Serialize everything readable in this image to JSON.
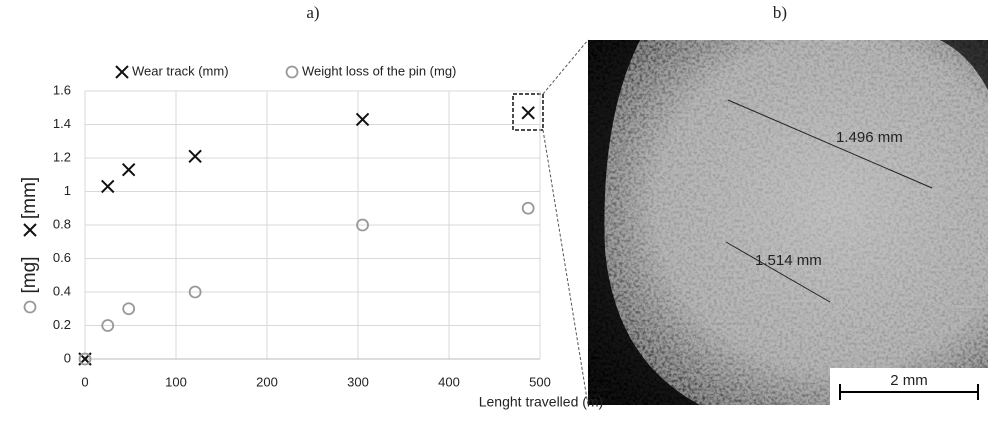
{
  "panels": {
    "a": "a)",
    "b": "b)"
  },
  "chart_data": {
    "type": "scatter",
    "xlabel": "Lenght travelled (m)",
    "ylabel_parts": [
      "[mg]",
      "[mm]"
    ],
    "xlim": [
      0,
      500
    ],
    "xticks": [
      0,
      100,
      200,
      300,
      400,
      500
    ],
    "ylim": [
      0,
      1.6
    ],
    "yticks": [
      0,
      0.2,
      0.4,
      0.6,
      0.8,
      1,
      1.2,
      1.4,
      1.6
    ],
    "grid": true,
    "series": [
      {
        "name": "Wear track (mm)",
        "marker": "x",
        "color": "#111111",
        "x": [
          0,
          25,
          48,
          121,
          305,
          487
        ],
        "values": [
          0,
          1.03,
          1.13,
          1.21,
          1.43,
          1.47
        ]
      },
      {
        "name": "Weight loss of the pin (mg)",
        "marker": "circle",
        "color": "#999999",
        "x": [
          0,
          25,
          48,
          121,
          305,
          487
        ],
        "values": [
          0,
          0.2,
          0.3,
          0.4,
          0.8,
          0.9
        ]
      }
    ]
  },
  "micrograph": {
    "measurements": [
      "1.496 mm",
      "1.514 mm"
    ],
    "scale_bar": "2 mm"
  }
}
